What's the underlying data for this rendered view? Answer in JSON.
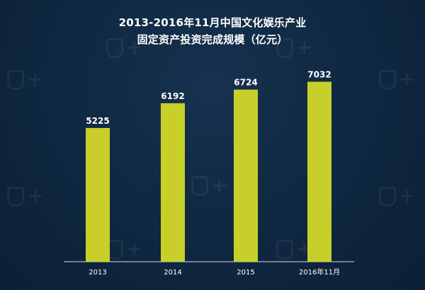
{
  "title_line1": "2013-2016年11月中国文化娱乐产业",
  "title_line2": "固定资产投资完成规模（亿元）",
  "chart_data": {
    "type": "bar",
    "categories": [
      "2013",
      "2014",
      "2015",
      "2016年11月"
    ],
    "values": [
      5225,
      6192,
      6724,
      7032
    ],
    "title": "2013-2016年11月中国文化娱乐产业固定资产投资完成规模（亿元）",
    "xlabel": "",
    "ylabel": "",
    "ylim": [
      0,
      7600
    ],
    "grid": false,
    "legend": "none",
    "bar_color": "#c8cf2a",
    "label_color": "#ffffff"
  }
}
